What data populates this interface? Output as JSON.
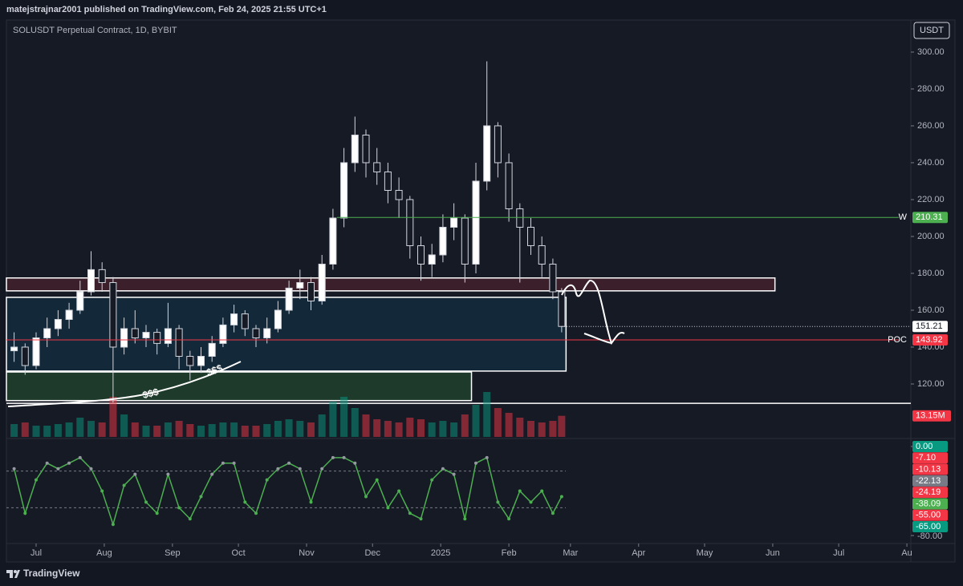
{
  "header": {
    "publisher": "matejstrajnar2001 published on TradingView.com, Feb 24, 2025 21:55 UTC+1"
  },
  "chart_data": {
    "type": "candlestick",
    "title": "SOLUSDT Perpetual Contract, 1D, BYBIT",
    "currency": "USDT",
    "x": [
      -10,
      -5,
      0,
      5,
      10,
      15,
      20,
      25,
      30,
      35,
      40,
      45,
      50,
      55,
      60,
      65,
      70,
      75,
      80,
      85,
      90,
      95,
      100,
      105,
      110,
      115,
      120,
      125,
      130,
      135,
      140,
      145,
      150,
      155,
      160,
      165,
      170,
      175,
      180,
      185,
      190,
      195,
      200,
      205,
      210,
      215,
      220,
      225,
      230,
      235,
      239
    ],
    "open": [
      138,
      140,
      130,
      145,
      150,
      155,
      160,
      170,
      182,
      175,
      140,
      150,
      145,
      148,
      142,
      150,
      135,
      130,
      135,
      142,
      152,
      158,
      150,
      145,
      150,
      160,
      172,
      175,
      165,
      185,
      210,
      240,
      255,
      240,
      235,
      225,
      220,
      195,
      185,
      190,
      205,
      210,
      185,
      230,
      260,
      240,
      215,
      205,
      195,
      185,
      170
    ],
    "high": [
      148,
      142,
      148,
      156,
      160,
      164,
      176,
      192,
      186,
      178,
      156,
      160,
      152,
      150,
      164,
      152,
      138,
      140,
      146,
      156,
      163,
      160,
      152,
      156,
      165,
      176,
      182,
      178,
      190,
      215,
      248,
      265,
      258,
      248,
      240,
      232,
      222,
      200,
      196,
      212,
      218,
      212,
      240,
      295,
      262,
      245,
      218,
      210,
      200,
      188,
      172
    ],
    "low": [
      132,
      125,
      128,
      140,
      146,
      150,
      158,
      168,
      170,
      110,
      136,
      142,
      140,
      136,
      140,
      128,
      122,
      126,
      132,
      140,
      148,
      146,
      140,
      142,
      148,
      158,
      166,
      160,
      163,
      182,
      205,
      235,
      232,
      228,
      218,
      210,
      188,
      176,
      178,
      186,
      198,
      175,
      180,
      225,
      232,
      208,
      175,
      190,
      178,
      166,
      148
    ],
    "close": [
      140,
      130,
      145,
      150,
      155,
      160,
      170,
      182,
      175,
      140,
      150,
      145,
      148,
      142,
      150,
      135,
      130,
      135,
      142,
      152,
      158,
      150,
      145,
      150,
      160,
      172,
      175,
      165,
      185,
      210,
      240,
      255,
      240,
      235,
      225,
      220,
      195,
      185,
      190,
      205,
      210,
      185,
      230,
      260,
      240,
      215,
      205,
      195,
      185,
      170,
      151.21
    ],
    "volume": [
      8,
      9,
      7,
      7,
      8,
      9,
      12,
      10,
      9,
      25,
      14,
      9,
      7,
      7,
      9,
      10,
      8,
      7,
      8,
      9,
      9,
      7,
      7,
      8,
      10,
      11,
      10,
      9,
      14,
      22,
      25,
      18,
      14,
      11,
      10,
      9,
      12,
      11,
      9,
      10,
      9,
      14,
      20,
      28,
      18,
      15,
      12,
      10,
      9,
      10,
      13.15
    ],
    "up_color": "#ffffff",
    "down_color": "#161a25",
    "xlim": [
      -13.5,
      397.8
    ],
    "xticks": [
      {
        "value": 0,
        "label": "Jul"
      },
      {
        "value": 31,
        "label": "Aug"
      },
      {
        "value": 62,
        "label": "Sep"
      },
      {
        "value": 92,
        "label": "Oct"
      },
      {
        "value": 123,
        "label": "Nov"
      },
      {
        "value": 153,
        "label": "Dec"
      },
      {
        "value": 184,
        "label": "2025"
      },
      {
        "value": 215,
        "label": "Feb"
      },
      {
        "value": 243,
        "label": "Mar"
      },
      {
        "value": 274,
        "label": "Apr"
      },
      {
        "value": 304,
        "label": "May"
      },
      {
        "value": 335,
        "label": "Jun"
      },
      {
        "value": 365,
        "label": "Jul"
      },
      {
        "value": 396,
        "label": "Au"
      }
    ],
    "ylim": [
      91.3,
      315.2
    ],
    "yticks": [
      {
        "value": 120,
        "label": "120.00"
      },
      {
        "value": 140,
        "label": "140.00"
      },
      {
        "value": 160,
        "label": "160.00"
      },
      {
        "value": 180,
        "label": "180.00"
      },
      {
        "value": 200,
        "label": "200.00"
      },
      {
        "value": 220,
        "label": "220.00"
      },
      {
        "value": 240,
        "label": "240.00"
      },
      {
        "value": 260,
        "label": "260.00"
      },
      {
        "value": 280,
        "label": "280.00"
      },
      {
        "value": 300,
        "label": "300.00"
      }
    ],
    "price_lines": [
      {
        "label": "W",
        "value": 210.31,
        "color": "#4caf50"
      },
      {
        "label": "POC",
        "value": 143.92,
        "color": "#f23645"
      }
    ],
    "last_price": 151.21,
    "volume_label": {
      "value": 13.15,
      "label": "13.15M"
    },
    "zones": [
      {
        "low": 170.5,
        "high": 177.5,
        "start": -13.5,
        "end": 336,
        "color": "#3b1f2b"
      },
      {
        "low": 127,
        "high": 167,
        "start": -13.5,
        "end": 241,
        "color": "#13293a"
      },
      {
        "low": 111,
        "high": 126.5,
        "start": -13.5,
        "end": 198,
        "color": "#1e3a2b"
      }
    ],
    "support_line": 109.5,
    "annotations": [
      "$$$",
      "$$$"
    ],
    "oscillator": {
      "values": [
        -20,
        -60,
        -30,
        -15,
        -20,
        -15,
        -10,
        -20,
        -40,
        -70,
        -35,
        -25,
        -50,
        -60,
        -25,
        -55,
        -65,
        -45,
        -25,
        -15,
        -15,
        -50,
        -60,
        -30,
        -20,
        -15,
        -20,
        -50,
        -20,
        -10,
        -10,
        -15,
        -45,
        -30,
        -55,
        -40,
        -60,
        -65,
        -30,
        -20,
        -25,
        -65,
        -15,
        -10,
        -50,
        -65,
        -40,
        -50,
        -40,
        -60,
        -45
      ],
      "color": "#4caf50",
      "ylim": [
        -85,
        5
      ],
      "yticks": [
        {
          "value": 0,
          "label": "0.00"
        },
        {
          "value": -80,
          "label": "-80.00"
        }
      ],
      "levels": [
        {
          "value": 0,
          "label": "0.00",
          "color": "#089981"
        },
        {
          "value": -7.1,
          "label": "-7.10",
          "color": "#f23645"
        },
        {
          "value": -10.13,
          "label": "-10.13",
          "color": "#f23645"
        },
        {
          "value": -22.13,
          "label": "-22.13",
          "color": "#787b86"
        },
        {
          "value": -24.19,
          "label": "-24.19",
          "color": "#f23645"
        },
        {
          "value": -38.09,
          "label": "-38.09",
          "color": "#4caf50"
        },
        {
          "value": -55,
          "label": "-55.00",
          "color": "#f23645"
        },
        {
          "value": -65,
          "label": "-65.00",
          "color": "#089981"
        }
      ]
    }
  },
  "footer": {
    "brand": "TradingView"
  }
}
